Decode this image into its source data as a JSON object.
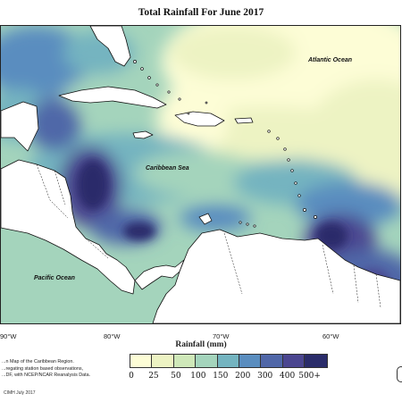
{
  "title": "Total Rainfall For June 2017",
  "labels": {
    "atlantic": "Atlantic Ocean",
    "caribbean": "Caribbean Sea",
    "pacific": "Pacific Ocean"
  },
  "axis": {
    "tick_labels": [
      "90°W",
      "80°W",
      "70°W",
      "60°W"
    ],
    "title": "Rainfall (mm)"
  },
  "legend": {
    "ticks": [
      "0",
      "25",
      "50",
      "100",
      "150",
      "200",
      "300",
      "400",
      "500+"
    ],
    "colors": [
      "#fdfdd6",
      "#edf3c3",
      "#cfe8b9",
      "#a4d4bc",
      "#74b4c0",
      "#5a8dbf",
      "#5067a8",
      "#4b4690",
      "#2a2c6a"
    ]
  },
  "description": [
    "...n Map of the Caribbean Region.",
    "...regating station based observations,",
    "...DF, with NCEP/NCAR Reanalysis Data."
  ],
  "credit": "CIMH July 2017",
  "colors": {
    "land": "#ffffff",
    "coastline": "#111111"
  }
}
